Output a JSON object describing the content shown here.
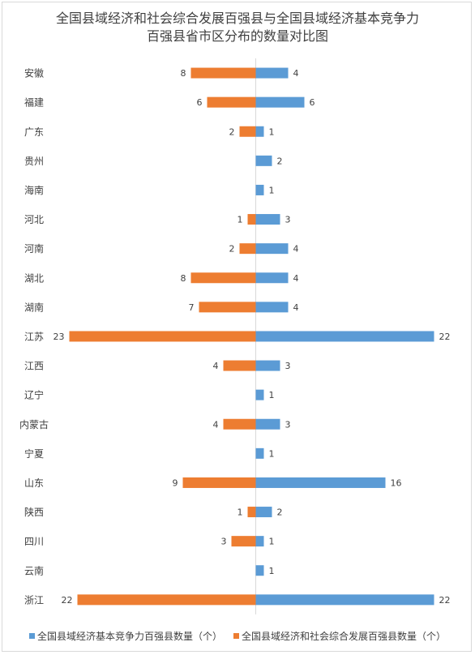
{
  "chart_data": {
    "type": "bar",
    "orientation": "horizontal-diverging",
    "title_line1": "全国县域经济和社会综合发展百强县与全国县域经济基本竞争力",
    "title_line2": "百强县省市区分布的数量对比图",
    "categories": [
      "安徽",
      "福建",
      "广东",
      "贵州",
      "海南",
      "河北",
      "河南",
      "湖北",
      "湖南",
      "江苏",
      "江西",
      "辽宁",
      "内蒙古",
      "宁夏",
      "山东",
      "陕西",
      "四川",
      "云南",
      "浙江"
    ],
    "series": [
      {
        "name": "全国县域经济基本竞争力百强县数量（个）",
        "color": "#5b9bd5",
        "side": "right",
        "values": [
          4,
          6,
          1,
          2,
          1,
          3,
          4,
          4,
          4,
          22,
          3,
          1,
          3,
          1,
          16,
          2,
          1,
          1,
          22
        ]
      },
      {
        "name": "全国县域经济和社会综合发展百强县数量（个）",
        "color": "#ed7d31",
        "side": "left",
        "values": [
          8,
          6,
          2,
          null,
          null,
          1,
          2,
          8,
          7,
          23,
          4,
          null,
          4,
          null,
          9,
          1,
          3,
          null,
          22
        ]
      }
    ],
    "xlim": [
      -23,
      23
    ],
    "grid": false,
    "legend_position": "bottom"
  }
}
